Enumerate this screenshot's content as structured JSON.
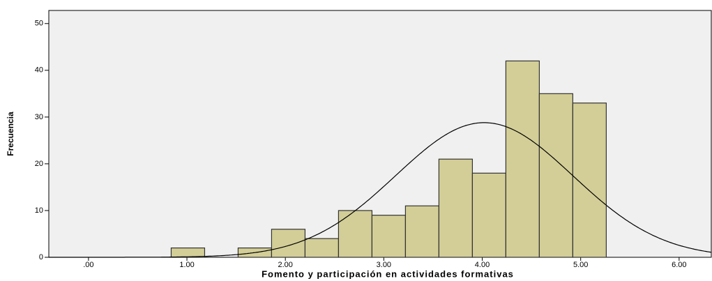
{
  "chart_data": {
    "type": "histogram",
    "x_label": "Fomento y participación en actividades formativas",
    "y_label": "Frecuencia",
    "bins": [
      0.84,
      1.18,
      1.52,
      1.86,
      2.2,
      2.54,
      2.88,
      3.22,
      3.56,
      3.9,
      4.24,
      4.58,
      4.92,
      5.26
    ],
    "values": [
      2,
      0,
      2,
      6,
      4,
      10,
      9,
      11,
      21,
      18,
      42,
      35,
      33
    ],
    "color": "#d3ce97",
    "normal_curve": {
      "mean": 4.02,
      "sd": 0.9,
      "peak": 28.8
    },
    "xlim": [
      -0.403,
      6.327
    ],
    "xticks": [
      {
        "value": 0,
        "label": ".00"
      },
      {
        "value": 1,
        "label": "1.00"
      },
      {
        "value": 2,
        "label": "2.00"
      },
      {
        "value": 3,
        "label": "3.00"
      },
      {
        "value": 4,
        "label": "4.00"
      },
      {
        "value": 5,
        "label": "5.00"
      },
      {
        "value": 6,
        "label": "6.00"
      }
    ],
    "ylim": [
      0,
      52.8
    ],
    "yticks": [
      0,
      10,
      20,
      30,
      40,
      50
    ]
  }
}
